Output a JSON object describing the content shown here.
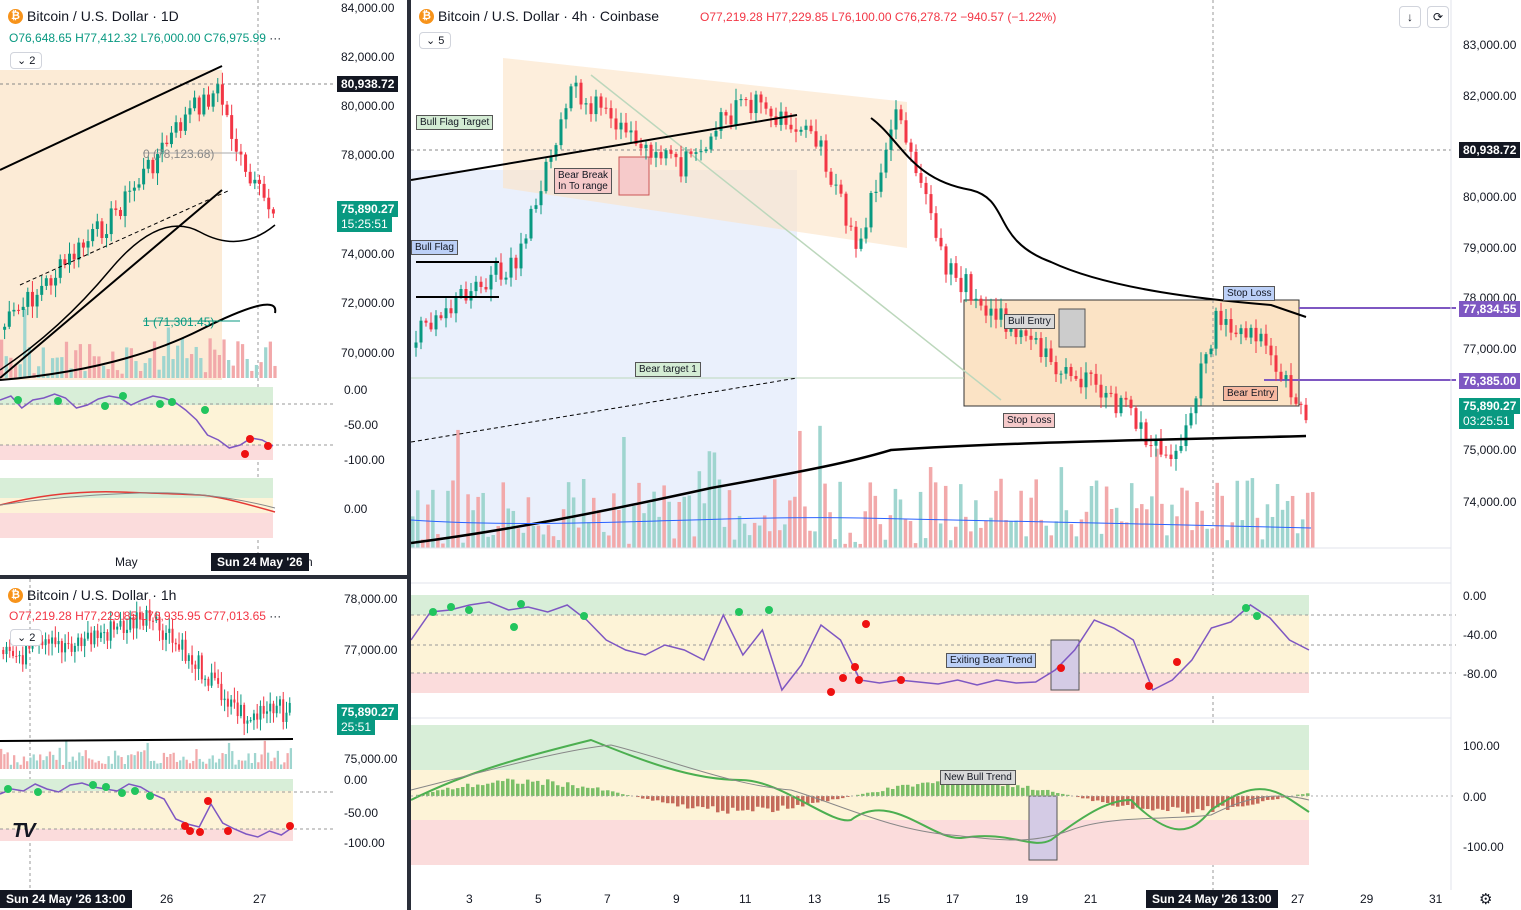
{
  "colors": {
    "up": "#089981",
    "down": "#f23645",
    "purple": "#7e57c2",
    "bull_zone": "#fbe3c5",
    "bear_zone": "#e5ecfb",
    "ob_green": "#d8eed8",
    "ob_yellow": "#fdf3d7",
    "ob_red": "#fbdcdc",
    "accent_teal": "#26a69a"
  },
  "panel_daily": {
    "title": "Bitcoin / U.S. Dollar · 1D",
    "ohlc": {
      "open": "O76,648.65",
      "high": "H77,412.32",
      "low": "L76,000.00",
      "close": "C76,975.99"
    },
    "more": "···",
    "indicator_count": "2",
    "price_axis": [
      "84,000.00",
      "82,000.00",
      "80,000.00",
      "78,000.00",
      "74,000.00",
      "72,000.00",
      "70,000.00"
    ],
    "price_tag_dark": "80,938.72",
    "price_tag_current": "75,890.27",
    "countdown": "15:25:51",
    "fib_top": "0 (78,123.68)",
    "fib_bottom": "1 (71,301.45)",
    "osc_axis": [
      "0.00",
      "-50.00",
      "-100.00"
    ],
    "macd_axis": [
      "0.00"
    ],
    "time_axis": {
      "month": "May",
      "date_tag": "Sun 24 May '26",
      "tail": "n"
    }
  },
  "panel_hourly": {
    "title": "Bitcoin / U.S. Dollar · 1h",
    "ohlc": {
      "open": "O77,219.28",
      "high": "H77,229.85",
      "low": "L76,935.95",
      "close": "C77,013.65"
    },
    "more": "···",
    "indicator_count": "2",
    "price_axis": [
      "78,000.00",
      "77,000.00",
      "75,000.00"
    ],
    "price_tag_current": "75,890.27",
    "countdown": "25:51",
    "osc_axis": [
      "0.00",
      "-50.00",
      "-100.00"
    ],
    "time_axis": {
      "date_tag": "Sun 24 May '26   13:00",
      "labels": [
        "26",
        "27"
      ]
    },
    "logo": "TV"
  },
  "panel_main": {
    "title": "Bitcoin / U.S. Dollar · 4h · Coinbase",
    "ohlc": {
      "open": "O77,219.28",
      "high": "H77,229.85",
      "low": "L76,100.00",
      "close": "C76,278.72",
      "change": "−940.57 (−1.22%)"
    },
    "indicator_count": "5",
    "icons": [
      "arrow-down-icon",
      "refresh-icon"
    ],
    "price_axis": [
      "83,000.00",
      "82,000.00",
      "80,000.00",
      "79,000.00",
      "78,000.00",
      "77,000.00",
      "75,000.00",
      "74,000.00"
    ],
    "price_tag_dark": "80,938.72",
    "price_tag_purple_1": "77,834.55",
    "price_tag_purple_2": "76,385.00",
    "price_tag_current": "75,890.27",
    "countdown": "03:25:51",
    "annotations": {
      "bull_flag_target": "Bull Flag Target",
      "bear_break": "Bear Break\nIn To range",
      "bull_flag": "Bull Flag",
      "bear_target": "Bear target 1",
      "bull_entry": "Bull Entry",
      "stop_loss_top": "Stop Loss",
      "stop_loss_bottom": "Stop Loss",
      "bear_entry": "Bear Entry",
      "exiting_bear": "Exiting Bear Trend",
      "new_bull": "New Bull Trend"
    },
    "osc_axis": [
      "0.00",
      "-40.00",
      "-80.00"
    ],
    "macd_axis": [
      "100.00",
      "0.00",
      "-100.00"
    ],
    "time_axis": {
      "labels": [
        "3",
        "5",
        "7",
        "9",
        "11",
        "13",
        "15",
        "17",
        "19",
        "21",
        "27",
        "29",
        "31"
      ],
      "date_tag": "Sun 24 May '26   13:00"
    },
    "settings_icon": "gear-icon"
  }
}
